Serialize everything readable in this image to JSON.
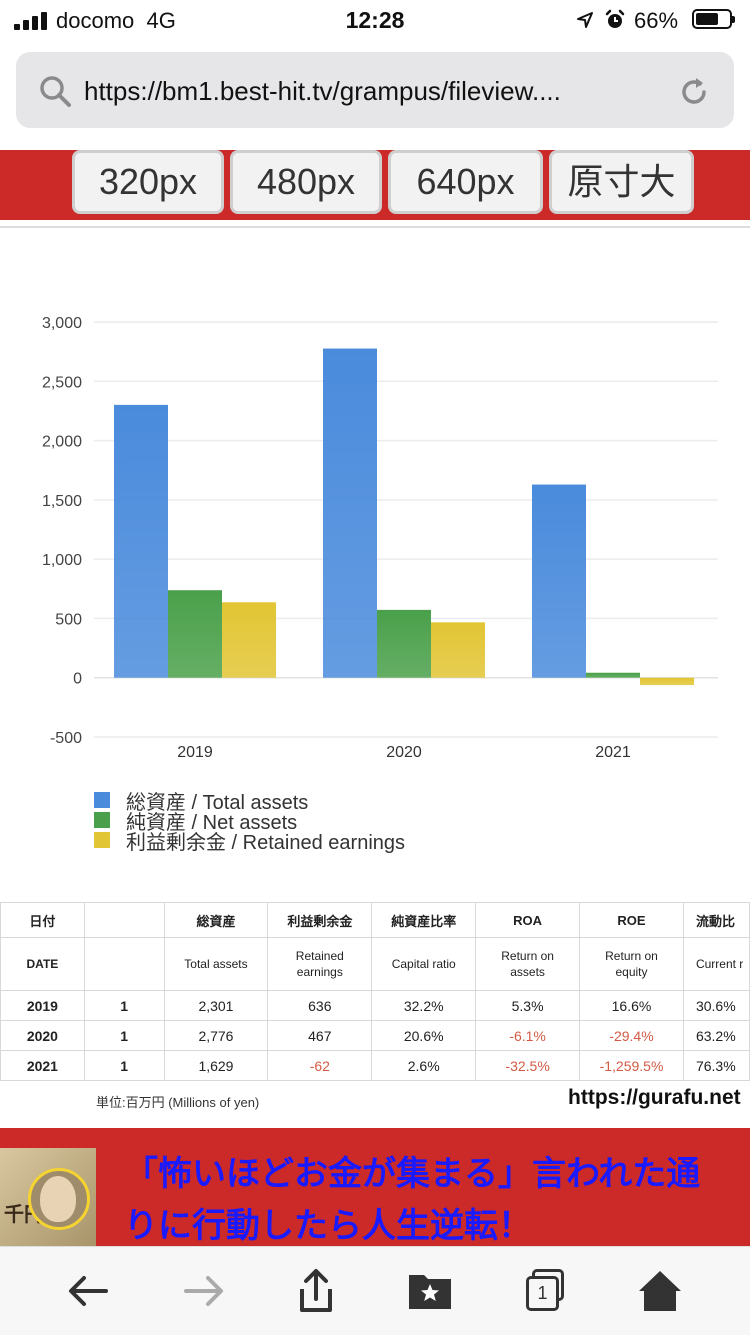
{
  "status_bar": {
    "carrier": "docomo",
    "network": "4G",
    "time": "12:28",
    "battery_percent": "66%",
    "icons": [
      "signal-icon",
      "location-icon",
      "alarm-icon",
      "battery-icon"
    ]
  },
  "browser": {
    "url": "https://bm1.best-hit.tv/grampus/fileview....",
    "icons": [
      "search-icon",
      "reload-icon"
    ]
  },
  "size_buttons": [
    "320px",
    "480px",
    "640px",
    "原寸大"
  ],
  "chart_data": {
    "type": "bar",
    "categories": [
      "2019",
      "2020",
      "2021"
    ],
    "series": [
      {
        "name": "総資産 / Total assets",
        "values": [
          2301,
          2776,
          1629
        ],
        "color": "#4a8bdc"
      },
      {
        "name": "純資産 / Net assets",
        "values": [
          738,
          572,
          42
        ],
        "color": "#4aa04a"
      },
      {
        "name": "利益剰余金 / Retained earnings",
        "values": [
          636,
          467,
          -62
        ],
        "color": "#e2c534"
      }
    ],
    "yticks": [
      "3,000",
      "2,500",
      "2,000",
      "1,500",
      "1,000",
      "500",
      "0",
      "-500"
    ],
    "ylim": [
      -500,
      3000
    ],
    "grid": true,
    "legend": "bottom-left"
  },
  "table": {
    "headers_jp": [
      "日付",
      "",
      "総資産",
      "利益剰余金",
      "純資産比率",
      "ROA",
      "ROE",
      "流動比"
    ],
    "headers_en": [
      "DATE",
      "",
      "Total assets",
      "Retained earnings",
      "Capital ratio",
      "Return on assets",
      "Return on equity",
      "Current r"
    ],
    "rows": [
      {
        "year": "2019",
        "month": "1",
        "total_assets": "2,301",
        "retained": "636",
        "capital_ratio": "32.2%",
        "roa": "5.3%",
        "roe": "16.6%",
        "current": "30.6%"
      },
      {
        "year": "2020",
        "month": "1",
        "total_assets": "2,776",
        "retained": "467",
        "capital_ratio": "20.6%",
        "roa": "-6.1%",
        "roe": "-29.4%",
        "current": "63.2%"
      },
      {
        "year": "2021",
        "month": "1",
        "total_assets": "1,629",
        "retained": "-62",
        "capital_ratio": "2.6%",
        "roa": "-32.5%",
        "roe": "-1,259.5%",
        "current": "76.3%"
      }
    ],
    "unit_note": "単位:百万円 (Millions of yen)",
    "source": "https://gurafu.net"
  },
  "ad": {
    "line1": "「怖いほどお金が集まる」言われた通",
    "line2": "りに行動したら人生逆転！",
    "image_text": "千円"
  },
  "toolbar": {
    "icons": [
      "back-icon",
      "forward-icon",
      "share-icon",
      "bookmarks-icon",
      "tabs-icon",
      "home-icon"
    ],
    "tab_count": "1"
  }
}
